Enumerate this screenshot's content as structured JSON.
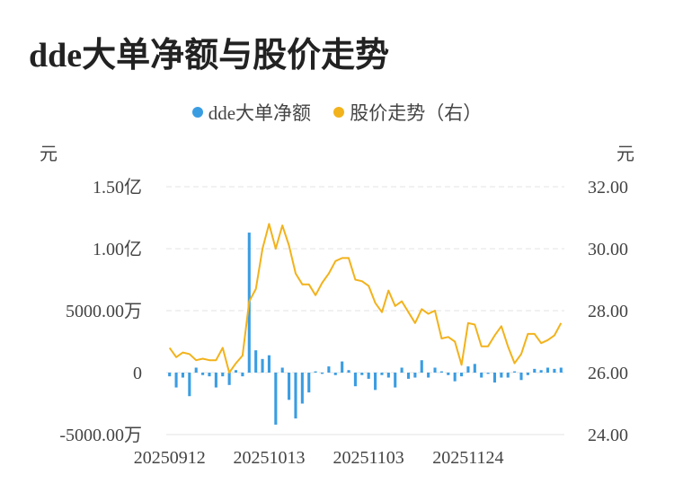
{
  "title": "dde大单净额与股价走势",
  "colors": {
    "bar": "#3a9de2",
    "line": "#f2b21b",
    "grid": "#e3e3e3"
  },
  "legend": [
    {
      "label": "dde大单净额",
      "color": "#3a9de2"
    },
    {
      "label": "股价走势（右）",
      "color": "#f2b21b"
    }
  ],
  "chart_data": {
    "type": "bar+line",
    "left_axis": {
      "unit": "元",
      "ticks": [
        "-5000.00万",
        "0",
        "5000.00万",
        "1.00亿",
        "1.50亿"
      ],
      "tick_values": [
        -5000,
        0,
        5000,
        10000,
        15000
      ],
      "range": [
        -5000,
        15000
      ],
      "value_unit": "万"
    },
    "right_axis": {
      "unit": "元",
      "ticks": [
        "24.00",
        "26.00",
        "28.00",
        "30.00",
        "32.00"
      ],
      "tick_values": [
        24,
        26,
        28,
        30,
        32
      ],
      "range": [
        24,
        32
      ]
    },
    "x_labels": [
      {
        "label": "20250912",
        "index": 0
      },
      {
        "label": "20251013",
        "index": 15
      },
      {
        "label": "20251103",
        "index": 30
      },
      {
        "label": "20251124",
        "index": 45
      }
    ],
    "grid": true,
    "legend_position": "top-center",
    "series": [
      {
        "name": "dde大单净额",
        "type": "bar",
        "axis": "left",
        "values": [
          -300,
          -1200,
          -400,
          -1900,
          400,
          -200,
          -300,
          -1200,
          -300,
          -1000,
          200,
          -300,
          11300,
          1800,
          1100,
          1400,
          -4200,
          400,
          -2200,
          -3700,
          -2500,
          -1600,
          100,
          -100,
          500,
          -200,
          900,
          200,
          -1100,
          -200,
          -500,
          -1400,
          -200,
          -400,
          -1200,
          400,
          -500,
          -400,
          1000,
          -400,
          400,
          100,
          -200,
          -700,
          -300,
          500,
          700,
          -400,
          -100,
          -800,
          -400,
          -400,
          100,
          -600,
          -200,
          300,
          200,
          400,
          300,
          400
        ]
      },
      {
        "name": "股价走势（右）",
        "type": "line",
        "axis": "right",
        "values": [
          26.8,
          26.5,
          26.65,
          26.6,
          26.4,
          26.45,
          26.4,
          26.4,
          26.8,
          26.0,
          26.3,
          26.55,
          28.3,
          28.7,
          30.0,
          30.8,
          30.0,
          30.75,
          30.1,
          29.2,
          28.85,
          28.85,
          28.5,
          28.9,
          29.2,
          29.6,
          29.7,
          29.7,
          29.0,
          28.95,
          28.8,
          28.25,
          27.95,
          28.65,
          28.15,
          28.3,
          27.95,
          27.6,
          28.05,
          27.9,
          28.0,
          27.1,
          27.15,
          27.0,
          26.25,
          27.6,
          27.55,
          26.85,
          26.85,
          27.2,
          27.5,
          26.85,
          26.3,
          26.6,
          27.25,
          27.25,
          26.95,
          27.05,
          27.2,
          27.6
        ]
      }
    ]
  }
}
